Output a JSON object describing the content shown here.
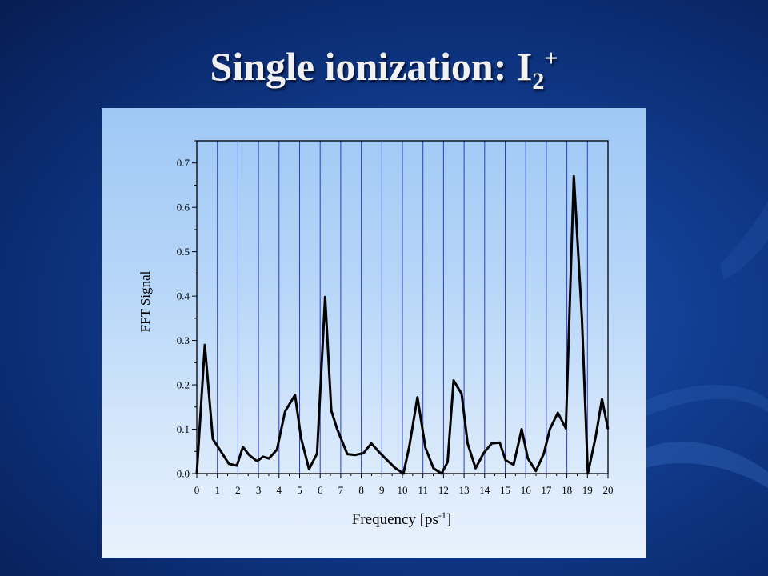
{
  "slide": {
    "title_main": "Single ionization: I",
    "title_sub": "2",
    "title_sup": "+"
  },
  "chart_data": {
    "type": "line",
    "xlabel_main": "Frequency [ps",
    "xlabel_sup": "-1",
    "xlabel_end": "]",
    "ylabel": "FFT Signal",
    "xlim": [
      0,
      20
    ],
    "ylim": [
      0,
      0.75
    ],
    "x_ticks": [
      0,
      1,
      2,
      3,
      4,
      5,
      6,
      7,
      8,
      9,
      10,
      11,
      12,
      13,
      14,
      15,
      16,
      17,
      18,
      19,
      20
    ],
    "x_tick_labels": [
      "0",
      "1",
      "2",
      "3",
      "4",
      "5",
      "6",
      "7",
      "8",
      "9",
      "10",
      "11",
      "12",
      "13",
      "14",
      "15",
      "16",
      "17",
      "18",
      "19",
      "20"
    ],
    "y_ticks": [
      0.0,
      0.1,
      0.2,
      0.3,
      0.4,
      0.5,
      0.6,
      0.7
    ],
    "y_tick_labels": [
      "0.0",
      "0.1",
      "0.2",
      "0.3",
      "0.4",
      "0.5",
      "0.6",
      "0.7"
    ],
    "vertical_gridlines": true,
    "gridline_color": "#2b3fc8",
    "line_color": "#000000",
    "series": [
      {
        "x": [
          0.0,
          0.39,
          0.78,
          1.17,
          1.56,
          1.95,
          2.24,
          2.54,
          2.93,
          3.22,
          3.51,
          3.9,
          4.29,
          4.78,
          5.07,
          5.46,
          5.85,
          6.24,
          6.54,
          6.83,
          7.32,
          7.71,
          8.1,
          8.49,
          8.88,
          9.27,
          9.66,
          10.05,
          10.34,
          10.73,
          11.12,
          11.51,
          11.9,
          12.2,
          12.49,
          12.88,
          13.17,
          13.56,
          13.95,
          14.34,
          14.73,
          15.02,
          15.41,
          15.8,
          16.1,
          16.49,
          16.88,
          17.17,
          17.56,
          17.95,
          18.34,
          18.73,
          19.02,
          19.41,
          19.71,
          20.0
        ],
        "y": [
          0.0,
          0.29,
          0.078,
          0.05,
          0.022,
          0.018,
          0.06,
          0.042,
          0.028,
          0.038,
          0.034,
          0.054,
          0.14,
          0.177,
          0.08,
          0.01,
          0.045,
          0.398,
          0.142,
          0.1,
          0.044,
          0.042,
          0.046,
          0.068,
          0.048,
          0.03,
          0.012,
          0.0,
          0.062,
          0.172,
          0.058,
          0.012,
          0.0,
          0.026,
          0.21,
          0.18,
          0.068,
          0.012,
          0.046,
          0.068,
          0.07,
          0.03,
          0.02,
          0.1,
          0.034,
          0.006,
          0.045,
          0.1,
          0.137,
          0.102,
          0.67,
          0.35,
          0.0,
          0.085,
          0.168,
          0.1
        ]
      }
    ]
  }
}
